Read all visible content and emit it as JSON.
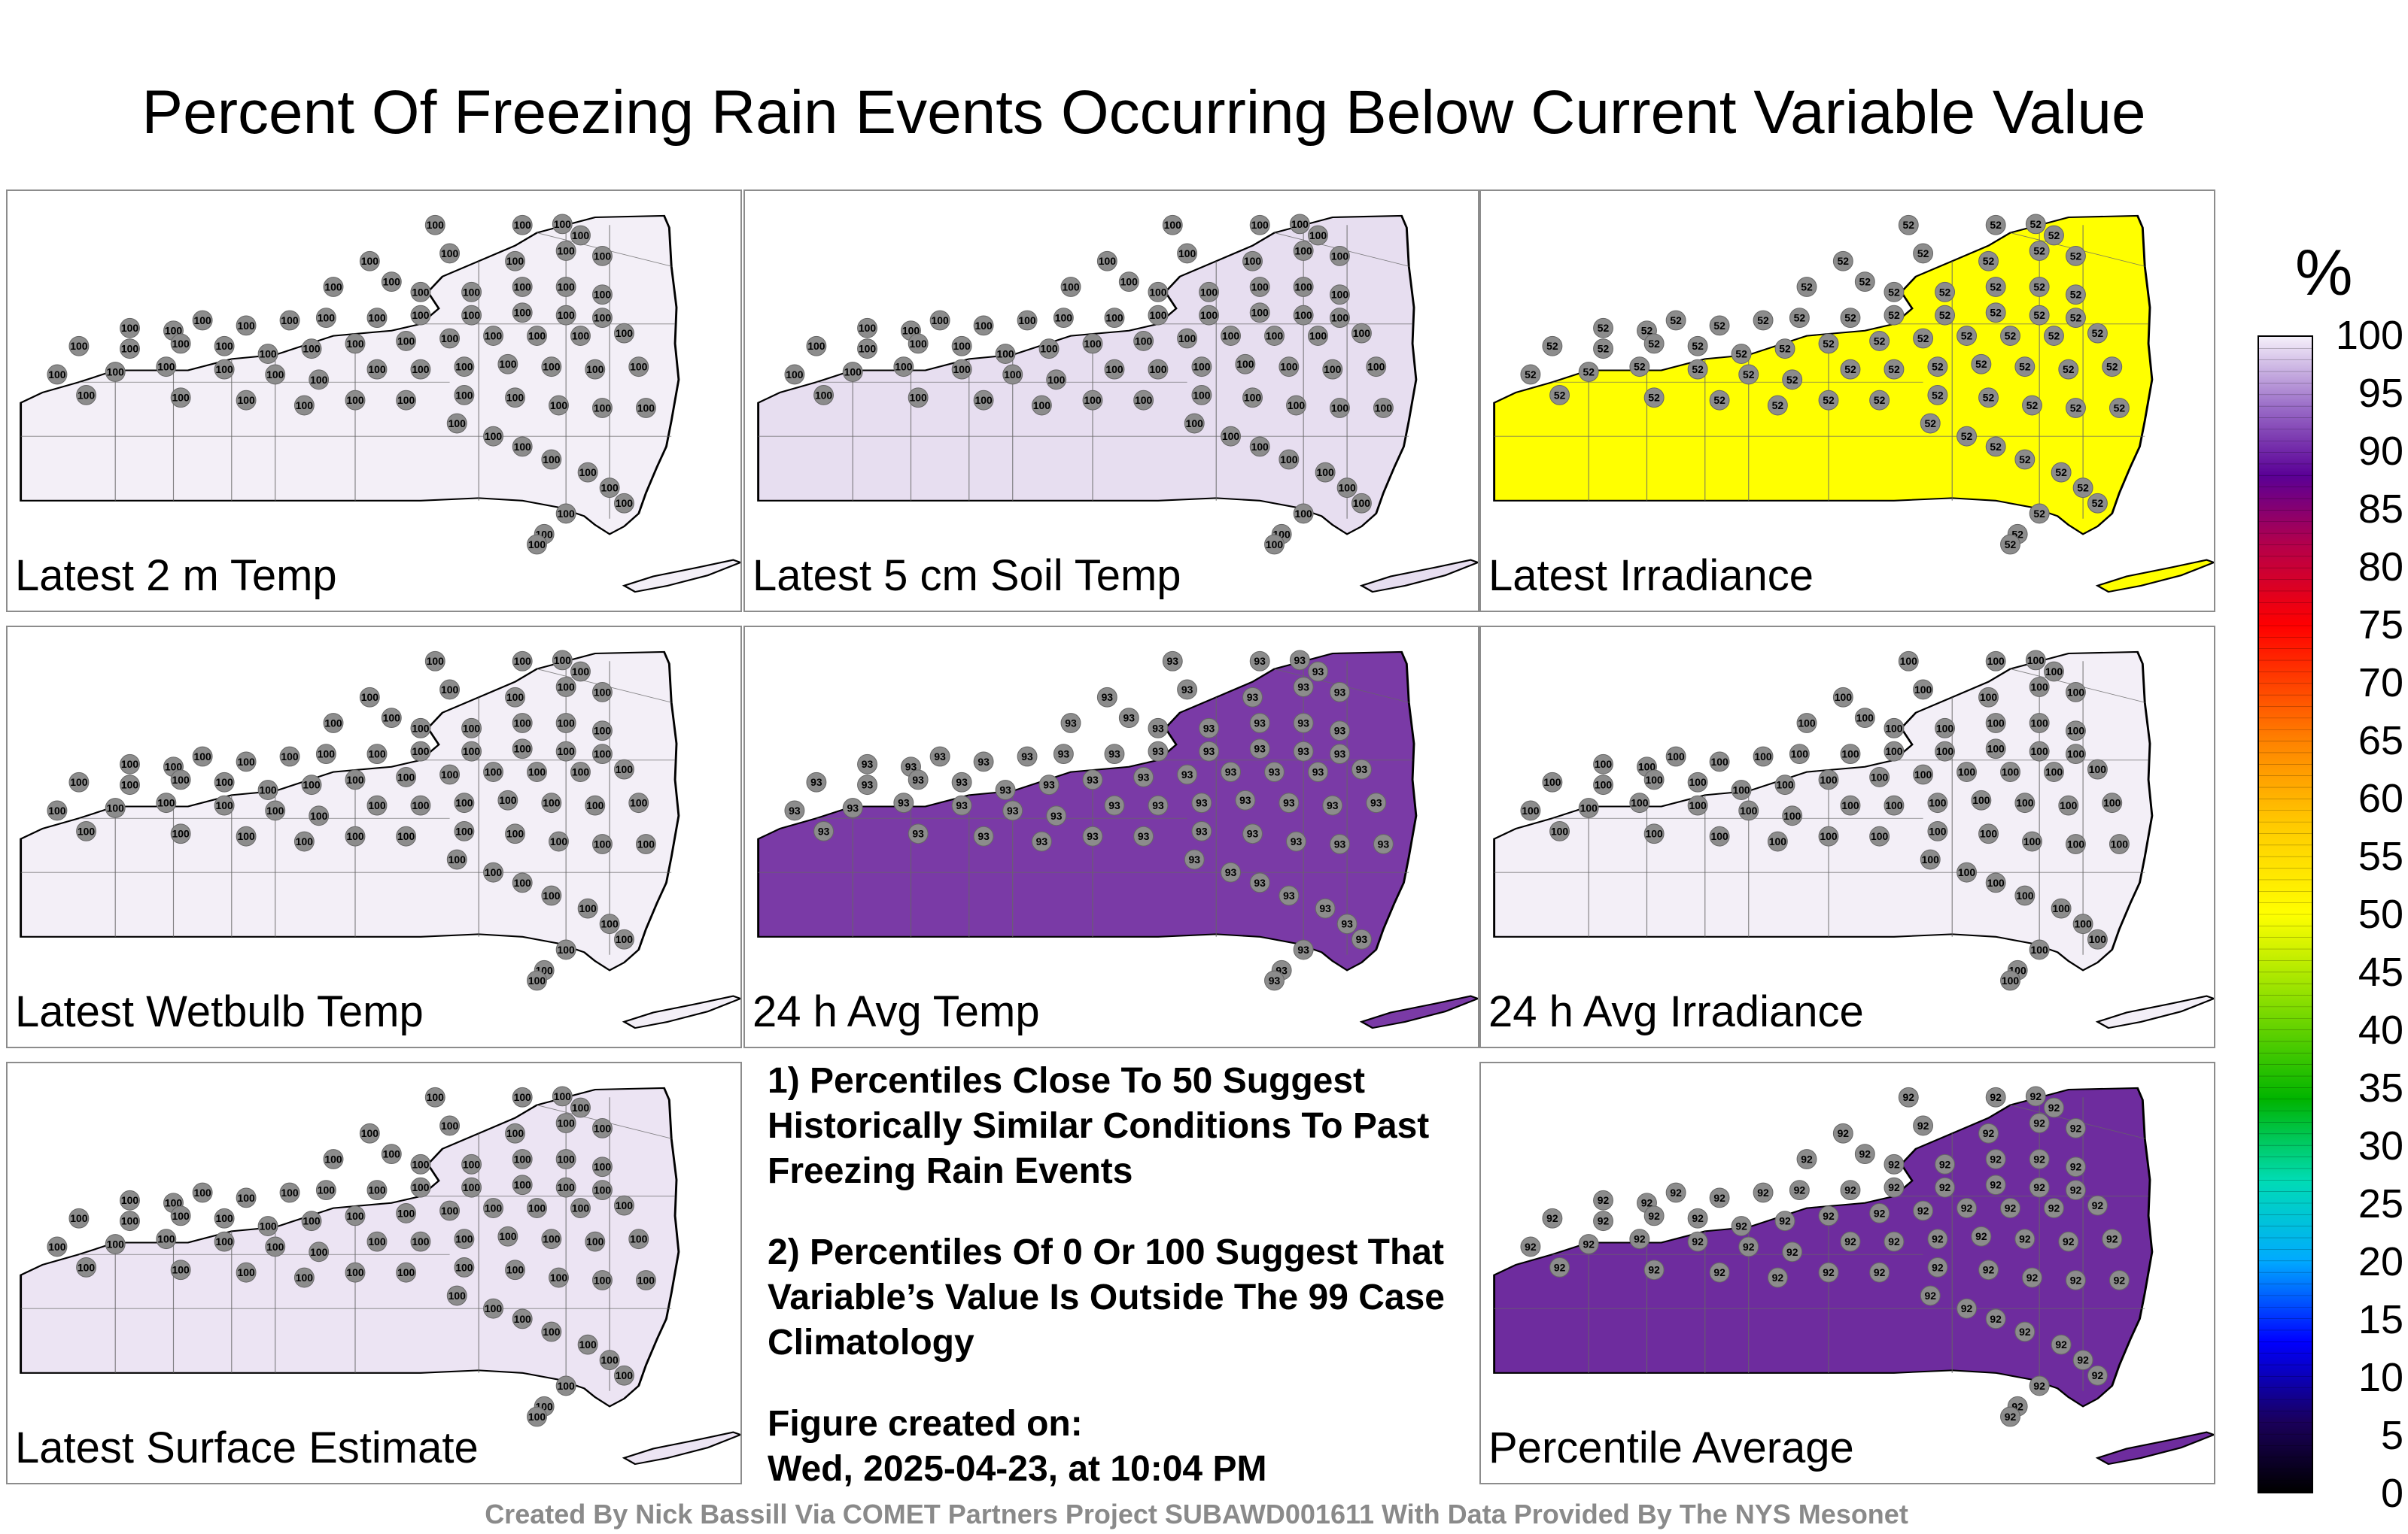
{
  "title": "Percent Of Freezing Rain Events Occurring Below Current Variable Value",
  "panels": [
    {
      "label": "Latest 2 m Temp",
      "fill": "#f3eff7",
      "value": "100"
    },
    {
      "label": "Latest 5 cm Soil Temp",
      "fill": "#e7def0",
      "value": "100"
    },
    {
      "label": "Latest Irradiance",
      "fill": "#ffff00",
      "value": "52"
    },
    {
      "label": "Latest Wetbulb Temp",
      "fill": "#f3eff7",
      "value": "100"
    },
    {
      "label": "24 h Avg Temp",
      "fill": "#7a3aa6",
      "value": "93"
    },
    {
      "label": "24 h Avg Irradiance",
      "fill": "#f3eff7",
      "value": "100"
    },
    {
      "label": "Latest Surface Estimate",
      "fill": "#ece4f3",
      "value": "100"
    },
    {
      "label": "Percentile Average",
      "fill": "#6e2c9e",
      "value": "92"
    }
  ],
  "notes": {
    "note1": "1) Percentiles Close To 50 Suggest Historically Similar Conditions To Past Freezing Rain Events",
    "note2": "2) Percentiles Of 0 Or 100 Suggest That Variable’s Value Is Outside The 99 Case Climatology",
    "created_label": "Figure created on:",
    "created_date": "Wed, 2025-04-23, at 10:04 PM"
  },
  "colorbar": {
    "unit": "%",
    "ticks": [
      "100",
      "95",
      "90",
      "85",
      "80",
      "75",
      "70",
      "65",
      "60",
      "55",
      "50",
      "45",
      "40",
      "35",
      "30",
      "25",
      "20",
      "15",
      "10",
      "5",
      "0"
    ]
  },
  "credit": "Created By Nick Bassill Via COMET Partners Project SUBAWD001611 With Data Provided By The NYS Mesonet"
}
